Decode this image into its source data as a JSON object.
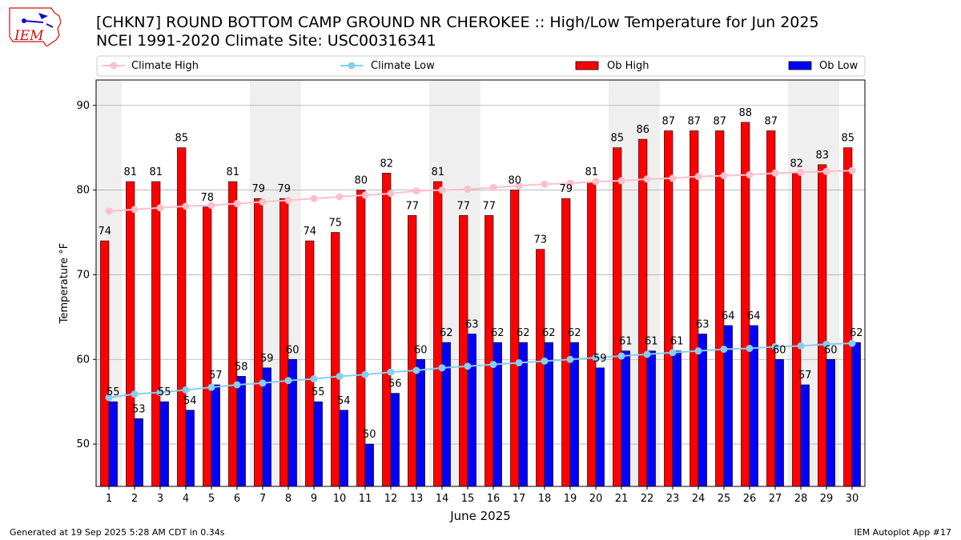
{
  "header": {
    "title_line1": "[CHKN7] ROUND BOTTOM CAMP GROUND NR CHEROKEE :: High/Low Temperature for Jun 2025",
    "title_line2": "NCEI 1991-2020 Climate Site: USC00316341",
    "logo_text": "IEM"
  },
  "footer": {
    "generated": "Generated at 19 Sep 2025 5:28 AM CDT in 0.34s",
    "app": "IEM Autoplot App #17"
  },
  "colors": {
    "ob_high": "#ff0000",
    "ob_low": "#0000ff",
    "climate_high": "#ffc0cb",
    "climate_low": "#87ceeb",
    "weekend_band": "#efefef",
    "grid": "#b0b0b0"
  },
  "chart_data": {
    "type": "bar",
    "xlabel": "June 2025",
    "ylabel": "Temperature °F",
    "ylim": [
      45,
      93
    ],
    "yticks": [
      50,
      60,
      70,
      80,
      90
    ],
    "grid": "horizontal",
    "legend_position": "top",
    "categories": [
      1,
      2,
      3,
      4,
      5,
      6,
      7,
      8,
      9,
      10,
      11,
      12,
      13,
      14,
      15,
      16,
      17,
      18,
      19,
      20,
      21,
      22,
      23,
      24,
      25,
      26,
      27,
      28,
      29,
      30
    ],
    "shaded_days": [
      1,
      7,
      8,
      14,
      15,
      21,
      22,
      28,
      29
    ],
    "series": [
      {
        "name": "Ob High",
        "kind": "bar",
        "values": [
          74,
          81,
          81,
          85,
          78,
          81,
          79,
          79,
          74,
          75,
          80,
          82,
          77,
          81,
          77,
          77,
          80,
          73,
          79,
          81,
          85,
          86,
          87,
          87,
          87,
          88,
          87,
          82,
          83,
          85
        ]
      },
      {
        "name": "Ob Low",
        "kind": "bar",
        "values": [
          55,
          53,
          55,
          54,
          57,
          58,
          59,
          60,
          55,
          54,
          50,
          56,
          60,
          62,
          63,
          62,
          62,
          62,
          62,
          59,
          61,
          61,
          61,
          63,
          64,
          64,
          60,
          57,
          60,
          62
        ]
      },
      {
        "name": "Climate High",
        "kind": "line",
        "values": [
          77.5,
          77.7,
          77.9,
          78.1,
          78.2,
          78.4,
          78.6,
          78.8,
          79.0,
          79.2,
          79.4,
          79.6,
          79.9,
          80.0,
          80.1,
          80.3,
          80.5,
          80.7,
          80.8,
          81.0,
          81.1,
          81.3,
          81.4,
          81.6,
          81.7,
          81.8,
          82.0,
          82.1,
          82.2,
          82.3
        ]
      },
      {
        "name": "Climate Low",
        "kind": "line",
        "values": [
          55.5,
          55.9,
          56.1,
          56.4,
          56.7,
          57.0,
          57.2,
          57.5,
          57.7,
          58.0,
          58.2,
          58.5,
          58.7,
          59.0,
          59.2,
          59.4,
          59.6,
          59.8,
          60.0,
          60.2,
          60.4,
          60.6,
          60.8,
          61.0,
          61.2,
          61.3,
          61.5,
          61.6,
          61.8,
          61.9
        ]
      }
    ]
  }
}
